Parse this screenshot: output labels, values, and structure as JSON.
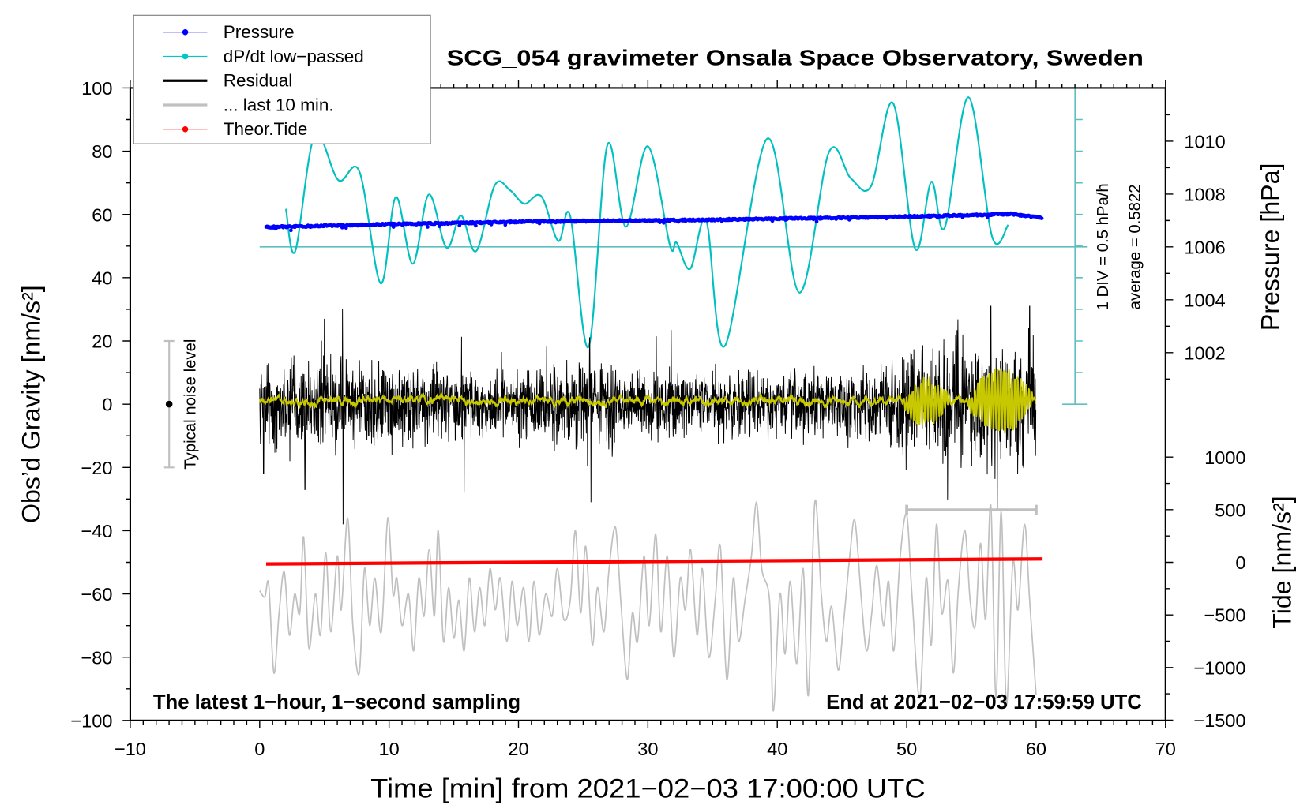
{
  "chart_data": {
    "type": "line",
    "title": "SCG_054 gravimeter Onsala Space Observatory, Sweden",
    "xlabel": "Time [min] from 2021−02−03 17:00:00 UTC",
    "ylabel_left": "Obs’d Gravity [nm/s²]",
    "ylabel_right_pressure": "Pressure [hPa]",
    "ylabel_right_tide": "Tide [nm/s²]",
    "xlim": [
      -10,
      70
    ],
    "ylim_left": [
      -100,
      100
    ],
    "pressure_range": [
      1000,
      1012
    ],
    "tide_range": [
      -1500,
      1000
    ],
    "x_ticks": [
      "−10",
      "0",
      "10",
      "20",
      "30",
      "40",
      "50",
      "60",
      "70"
    ],
    "y_ticks_left": [
      "100",
      "80",
      "60",
      "40",
      "20",
      "0",
      "−20",
      "−40",
      "−60",
      "−80",
      "−100"
    ],
    "pressure_ticks": [
      "1010",
      "1008",
      "1006",
      "1004",
      "1002"
    ],
    "tide_ticks": [
      "1000",
      "500",
      "0",
      "−500",
      "−1000",
      "−1500"
    ],
    "annotation_left": "The latest 1−hour, 1−second sampling",
    "annotation_right": "End at 2021−02−03 17:59:59 UTC",
    "dpdt_scale_label": "1 DIV = 0.5 hPa/h",
    "dpdt_average_label": "average = 0.5822",
    "dpdt_average": 0.5822,
    "dpdt_div": 0.5,
    "noise_label": "Typical noise level",
    "noise_level": 20,
    "legend": {
      "position": "top-left",
      "items": [
        {
          "label": "Pressure",
          "color": "#0000ff",
          "marker": true
        },
        {
          "label": "dP/dt low−passed",
          "color": "#00c8c8",
          "marker": true
        },
        {
          "label": "Residual",
          "color": "#000000",
          "marker": false
        },
        {
          "label": "... last 10 min.",
          "color": "#c0c0c0",
          "marker": false
        },
        {
          "label": "Theor.Tide",
          "color": "#ff0000",
          "marker": true
        }
      ]
    },
    "colors": {
      "pressure": "#0000ff",
      "dpdt": "#00c0c0",
      "dpdt_axis": "#5fbfbf",
      "residual": "#000000",
      "lowpass": "#c8c800",
      "gray": "#c0c0c0",
      "tide": "#ff0000"
    },
    "last10_range": [
      50,
      60
    ],
    "series": {
      "pressure_hPa": [
        [
          0.5,
          1006.75
        ],
        [
          5,
          1006.8
        ],
        [
          10,
          1006.86
        ],
        [
          15,
          1006.9
        ],
        [
          20,
          1006.95
        ],
        [
          25,
          1006.98
        ],
        [
          30,
          1007.0
        ],
        [
          35,
          1007.03
        ],
        [
          40,
          1007.07
        ],
        [
          45,
          1007.1
        ],
        [
          50,
          1007.15
        ],
        [
          55,
          1007.2
        ],
        [
          58,
          1007.25
        ],
        [
          60.5,
          1007.1
        ]
      ],
      "dpdt_hPa_per_h": [
        [
          2.03,
          1.184
        ],
        [
          2.75,
          0.515
        ],
        [
          4.25,
          2.347
        ],
        [
          6.08,
          1.638
        ],
        [
          7.71,
          1.772
        ],
        [
          9.35,
          0.007
        ],
        [
          10.52,
          1.371
        ],
        [
          11.83,
          0.315
        ],
        [
          13.07,
          1.411
        ],
        [
          14.44,
          0.569
        ],
        [
          15.56,
          1.077
        ],
        [
          16.73,
          0.515
        ],
        [
          18.17,
          1.558
        ],
        [
          19.35,
          1.478
        ],
        [
          20.46,
          1.264
        ],
        [
          21.76,
          1.384
        ],
        [
          23.07,
          0.676
        ],
        [
          23.99,
          1.077
        ],
        [
          25.42,
          -0.995
        ],
        [
          26.86,
          2.187
        ],
        [
          28.3,
          0.903
        ],
        [
          30.0,
          2.173
        ],
        [
          31.7,
          0.609
        ],
        [
          32.22,
          0.649
        ],
        [
          33.27,
          0.235
        ],
        [
          34.51,
          0.997
        ],
        [
          35.95,
          -0.982
        ],
        [
          39.22,
          2.294
        ],
        [
          41.7,
          -0.14
        ],
        [
          43.99,
          2.08
        ],
        [
          45.69,
          1.665
        ],
        [
          47.25,
          1.545
        ],
        [
          48.95,
          2.855
        ],
        [
          50.65,
          0.555
        ],
        [
          51.9,
          1.612
        ],
        [
          52.94,
          0.89
        ],
        [
          54.77,
          2.949
        ],
        [
          56.6,
          0.743
        ],
        [
          57.84,
          0.93
        ]
      ],
      "tide_nm_s2": [
        [
          0.5,
          -16
        ],
        [
          60.5,
          32
        ]
      ],
      "residual_envelope": [
        [
          0,
          10
        ],
        [
          10,
          9
        ],
        [
          20,
          8
        ],
        [
          25,
          10
        ],
        [
          30,
          7
        ],
        [
          40,
          7
        ],
        [
          48,
          8
        ],
        [
          50,
          12
        ],
        [
          55,
          14
        ],
        [
          60,
          15
        ]
      ],
      "residual_spikes": [
        [
          0.3,
          -22
        ],
        [
          3.5,
          -27
        ],
        [
          5,
          27
        ],
        [
          6.4,
          30
        ],
        [
          6.45,
          -38
        ],
        [
          15.8,
          -28
        ],
        [
          25.5,
          21
        ],
        [
          25.6,
          -31
        ],
        [
          56.5,
          31
        ],
        [
          57,
          -33
        ],
        [
          59.5,
          31
        ],
        [
          60,
          -30
        ]
      ],
      "lowpass_bursts": [
        [
          49.5,
          53.5,
          7
        ],
        [
          54.5,
          60,
          10
        ]
      ],
      "last10_gray": [
        [
          0,
          -59
        ],
        [
          0.4,
          -61
        ],
        [
          0.7,
          -57
        ],
        [
          1.1,
          -85
        ],
        [
          1.5,
          -66
        ],
        [
          1.9,
          -53
        ],
        [
          2.3,
          -73
        ],
        [
          2.7,
          -60
        ],
        [
          3.1,
          -66
        ],
        [
          3.4,
          -42
        ],
        [
          3.8,
          -77
        ],
        [
          4.3,
          -60
        ],
        [
          4.7,
          -73
        ],
        [
          5.1,
          -47
        ],
        [
          5.5,
          -72
        ],
        [
          6.0,
          -48
        ],
        [
          6.3,
          -65
        ],
        [
          6.8,
          -36
        ],
        [
          7.2,
          -70
        ],
        [
          7.7,
          -85
        ],
        [
          8.1,
          -52
        ],
        [
          8.5,
          -70
        ],
        [
          8.9,
          -55
        ],
        [
          9.4,
          -72
        ],
        [
          9.9,
          -36
        ],
        [
          10.3,
          -60
        ],
        [
          10.6,
          -55
        ],
        [
          11.0,
          -70
        ],
        [
          11.5,
          -60
        ],
        [
          11.9,
          -78
        ],
        [
          12.3,
          -55
        ],
        [
          12.7,
          -67
        ],
        [
          13.1,
          -46
        ],
        [
          13.5,
          -67
        ],
        [
          13.8,
          -40
        ],
        [
          14.2,
          -75
        ],
        [
          14.6,
          -58
        ],
        [
          15.0,
          -74
        ],
        [
          15.4,
          -62
        ],
        [
          15.8,
          -78
        ],
        [
          16.2,
          -55
        ],
        [
          16.6,
          -72
        ],
        [
          17.0,
          -58
        ],
        [
          17.4,
          -70
        ],
        [
          17.8,
          -52
        ],
        [
          18.2,
          -65
        ],
        [
          18.6,
          -55
        ],
        [
          19.1,
          -75
        ],
        [
          19.5,
          -56
        ],
        [
          19.9,
          -70
        ],
        [
          20.4,
          -58
        ],
        [
          20.8,
          -75
        ],
        [
          21.2,
          -56
        ],
        [
          21.6,
          -73
        ],
        [
          22.1,
          -60
        ],
        [
          22.6,
          -67
        ],
        [
          23.0,
          -52
        ],
        [
          23.5,
          -68
        ],
        [
          24.0,
          -62
        ],
        [
          24.4,
          -40
        ],
        [
          24.8,
          -66
        ],
        [
          25.2,
          -45
        ],
        [
          25.7,
          -76
        ],
        [
          26.1,
          -58
        ],
        [
          26.6,
          -72
        ],
        [
          27.0,
          -52
        ],
        [
          27.5,
          -39
        ],
        [
          27.9,
          -62
        ],
        [
          28.4,
          -87
        ],
        [
          28.8,
          -66
        ],
        [
          29.2,
          -75
        ],
        [
          29.7,
          -48
        ],
        [
          30.1,
          -70
        ],
        [
          30.6,
          -41
        ],
        [
          31.0,
          -72
        ],
        [
          31.5,
          -48
        ],
        [
          32.0,
          -80
        ],
        [
          32.5,
          -55
        ],
        [
          32.9,
          -65
        ],
        [
          33.3,
          -46
        ],
        [
          33.8,
          -73
        ],
        [
          34.2,
          -52
        ],
        [
          34.7,
          -80
        ],
        [
          35.2,
          -62
        ],
        [
          35.6,
          -45
        ],
        [
          36.1,
          -87
        ],
        [
          36.6,
          -55
        ],
        [
          37.0,
          -75
        ],
        [
          37.5,
          -62
        ],
        [
          38.0,
          -48
        ],
        [
          38.4,
          -31
        ],
        [
          38.8,
          -52
        ],
        [
          39.4,
          -62
        ],
        [
          39.7,
          -97
        ],
        [
          40.2,
          -60
        ],
        [
          40.6,
          -79
        ],
        [
          41.0,
          -56
        ],
        [
          41.5,
          -82
        ],
        [
          42.0,
          -52
        ],
        [
          42.4,
          -92
        ],
        [
          42.9,
          -31
        ],
        [
          43.4,
          -60
        ],
        [
          43.8,
          -75
        ],
        [
          44.2,
          -64
        ],
        [
          44.7,
          -84
        ],
        [
          45.1,
          -70
        ],
        [
          45.6,
          -48
        ],
        [
          46.0,
          -37
        ],
        [
          46.5,
          -62
        ],
        [
          46.9,
          -78
        ],
        [
          47.3,
          -66
        ],
        [
          47.7,
          -51
        ],
        [
          48.2,
          -70
        ],
        [
          48.6,
          -56
        ],
        [
          49.0,
          -78
        ],
        [
          49.5,
          -48
        ],
        [
          50.0,
          -35
        ],
        [
          50.4,
          -60
        ],
        [
          51.0,
          -93
        ],
        [
          51.5,
          -55
        ],
        [
          51.9,
          -76
        ],
        [
          52.3,
          -38
        ],
        [
          52.7,
          -66
        ],
        [
          53.2,
          -56
        ],
        [
          53.6,
          -85
        ],
        [
          54.0,
          -58
        ],
        [
          54.5,
          -40
        ],
        [
          54.9,
          -62
        ],
        [
          55.3,
          -70
        ],
        [
          55.7,
          -44
        ],
        [
          56.1,
          -68
        ],
        [
          56.5,
          -32
        ],
        [
          56.9,
          -93
        ],
        [
          57.3,
          -34
        ],
        [
          57.7,
          -95
        ],
        [
          58.2,
          -50
        ],
        [
          58.6,
          -65
        ],
        [
          59.1,
          -38
        ],
        [
          59.5,
          -62
        ],
        [
          60.0,
          -92
        ]
      ]
    }
  }
}
